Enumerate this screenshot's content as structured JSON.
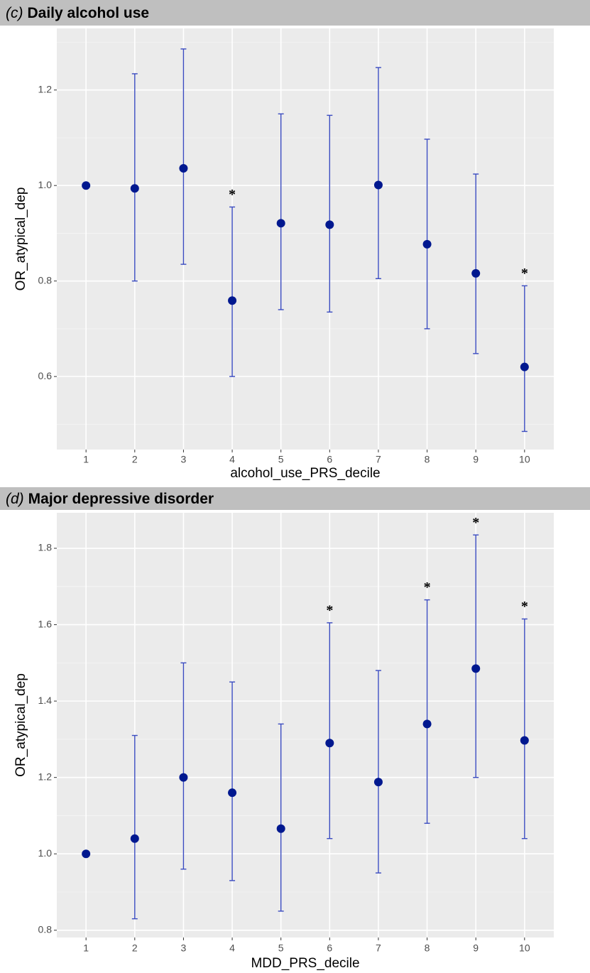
{
  "chart_data": [
    {
      "type": "errorbar",
      "label": "(c)",
      "title": "Daily alcohol use",
      "x_label": "alcohol_use_PRS_decile",
      "y_label": "OR_atypical_dep",
      "categories": [
        "1",
        "2",
        "3",
        "4",
        "5",
        "6",
        "7",
        "8",
        "9",
        "10"
      ],
      "values": [
        1.0,
        0.994,
        1.036,
        0.759,
        0.921,
        0.918,
        1.001,
        0.877,
        0.816,
        0.62
      ],
      "lower": [
        null,
        0.8,
        0.835,
        0.6,
        0.74,
        0.735,
        0.805,
        0.7,
        0.648,
        0.485
      ],
      "upper": [
        null,
        1.234,
        1.286,
        0.955,
        1.15,
        1.147,
        1.247,
        1.097,
        1.024,
        0.79
      ],
      "annotations": [
        {
          "x": "4",
          "text": "*"
        },
        {
          "x": "10",
          "text": "*"
        }
      ],
      "ylim": [
        0.447,
        1.329
      ],
      "yticks": [
        0.6,
        0.8,
        {
          "value": 1,
          "label": "1.0"
        },
        1.2
      ],
      "color": "#00188f",
      "error_color": "#3a4bc0",
      "grid": true
    },
    {
      "type": "errorbar",
      "label": "(d)",
      "title": "Major depressive disorder",
      "x_label": "MDD_PRS_decile",
      "y_label": "OR_atypical_dep",
      "categories": [
        "1",
        "2",
        "3",
        "4",
        "5",
        "6",
        "7",
        "8",
        "9",
        "10"
      ],
      "values": [
        1.0,
        1.04,
        1.2,
        1.16,
        1.066,
        1.29,
        1.188,
        1.34,
        1.485,
        1.297
      ],
      "lower": [
        null,
        0.83,
        0.96,
        0.93,
        0.85,
        1.04,
        0.95,
        1.08,
        1.2,
        1.04
      ],
      "upper": [
        null,
        1.31,
        1.5,
        1.45,
        1.34,
        1.605,
        1.48,
        1.665,
        1.835,
        1.615
      ],
      "annotations": [
        {
          "x": "6",
          "text": "*"
        },
        {
          "x": "8",
          "text": "*"
        },
        {
          "x": "9",
          "text": "*"
        },
        {
          "x": "10",
          "text": "*"
        }
      ],
      "ylim": [
        0.781,
        1.893
      ],
      "yticks": [
        0.8,
        {
          "value": 1,
          "label": "1.0"
        },
        1.2,
        1.4,
        1.6,
        1.8
      ],
      "color": "#00188f",
      "error_color": "#3a4bc0",
      "grid": true
    }
  ]
}
